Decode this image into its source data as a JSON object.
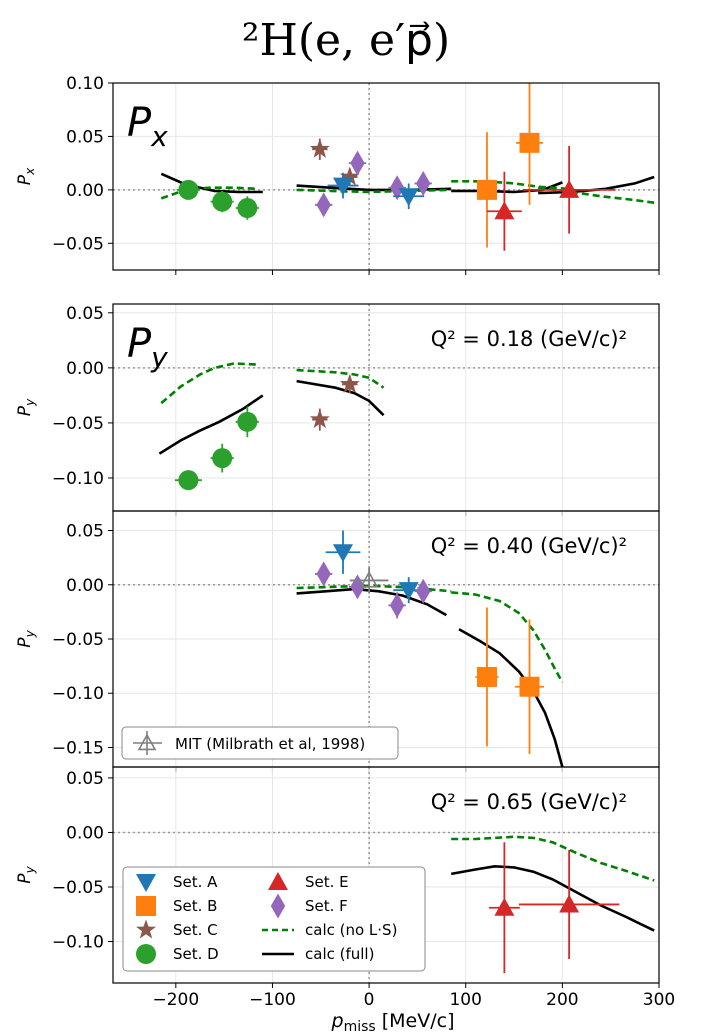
{
  "chart_data": {
    "type": "scatter",
    "title": "²H(e, e′p⃗)",
    "xlabel_main": "p",
    "xlabel_sub": "miss",
    "xlabel_unit": " [MeV/c]",
    "xlim": [
      -265,
      300
    ],
    "xticks": [
      -200,
      -100,
      0,
      100,
      200,
      300
    ],
    "xtick_labels": [
      "−200",
      "−100",
      "0",
      "100",
      "200",
      "300"
    ],
    "colors": {
      "A": "#1f77b4",
      "B": "#ff7f0e",
      "C": "#8c564b",
      "D": "#2ca02c",
      "E": "#d62728",
      "F": "#9467bd",
      "noLS": "#008000",
      "full": "#000000",
      "MIT": "#7f7f7f"
    },
    "panels": [
      {
        "id": "px",
        "ylabel": "P",
        "ylabel_sub": "x",
        "big_label": "P",
        "big_label_sub": "x",
        "annotation": "",
        "ylim": [
          -0.075,
          0.1
        ],
        "yticks": [
          -0.05,
          0.0,
          0.05,
          0.1
        ],
        "ytick_labels": [
          "−0.05",
          "0.00",
          "0.05",
          "0.10"
        ],
        "points": [
          {
            "set": "D",
            "x": -187,
            "y": 0.0,
            "xerr": 12,
            "yerr": 0.009
          },
          {
            "set": "D",
            "x": -152,
            "y": -0.011,
            "xerr": 12,
            "yerr": 0.01
          },
          {
            "set": "D",
            "x": -126,
            "y": -0.017,
            "xerr": 12,
            "yerr": 0.011
          },
          {
            "set": "C",
            "x": -51,
            "y": 0.038,
            "xerr": 8,
            "yerr": 0.01
          },
          {
            "set": "C",
            "x": -20,
            "y": 0.012,
            "xerr": 8,
            "yerr": 0.008
          },
          {
            "set": "F",
            "x": -47,
            "y": -0.014,
            "xerr": 9,
            "yerr": 0.01
          },
          {
            "set": "F",
            "x": -12,
            "y": 0.025,
            "xerr": 9,
            "yerr": 0.01
          },
          {
            "set": "F",
            "x": 29,
            "y": 0.002,
            "xerr": 9,
            "yerr": 0.01
          },
          {
            "set": "F",
            "x": 56,
            "y": 0.006,
            "xerr": 9,
            "yerr": 0.01
          },
          {
            "set": "A",
            "x": -27,
            "y": 0.004,
            "xerr": 16,
            "yerr": 0.012
          },
          {
            "set": "A",
            "x": 41,
            "y": -0.006,
            "xerr": 16,
            "yerr": 0.012
          },
          {
            "set": "B",
            "x": 122,
            "y": 0.0,
            "xerr": 10,
            "yerr": 0.054
          },
          {
            "set": "B",
            "x": 166,
            "y": 0.044,
            "xerr": 14,
            "yerr": 0.058
          },
          {
            "set": "E",
            "x": 140,
            "y": -0.02,
            "xerr": 18,
            "yerr": 0.037
          },
          {
            "set": "E",
            "x": 207,
            "y": 0.0,
            "xerr": 48,
            "yerr": 0.041
          }
        ],
        "curves": [
          {
            "kind": "full",
            "x": [
              -215,
              -190,
              -160,
              -135,
              -110
            ],
            "y": [
              0.015,
              0.005,
              -0.001,
              -0.002,
              -0.002
            ]
          },
          {
            "kind": "full",
            "x": [
              -75,
              -40,
              0,
              40,
              85
            ],
            "y": [
              0.004,
              0.002,
              0.0,
              0.0,
              0.001
            ]
          },
          {
            "kind": "full",
            "x": [
              85,
              120,
              150,
              180,
              200
            ],
            "y": [
              -0.001,
              -0.001,
              -0.002,
              0.0,
              0.007
            ]
          },
          {
            "kind": "full",
            "x": [
              175,
              210,
              245,
              275,
              295
            ],
            "y": [
              -0.003,
              -0.002,
              0.001,
              0.006,
              0.012
            ]
          },
          {
            "kind": "noLS",
            "x": [
              -215,
              -190,
              -165,
              -140,
              -115
            ],
            "y": [
              -0.008,
              0.0,
              0.002,
              0.002,
              0.001
            ]
          },
          {
            "kind": "noLS",
            "x": [
              -75,
              -40,
              0,
              40,
              85
            ],
            "y": [
              0.0,
              -0.001,
              -0.002,
              -0.001,
              0.0
            ]
          },
          {
            "kind": "noLS",
            "x": [
              85,
              120,
              150,
              175,
              205
            ],
            "y": [
              0.008,
              0.008,
              0.006,
              0.003,
              0.001
            ]
          },
          {
            "kind": "noLS",
            "x": [
              175,
              210,
              240,
              270,
              295
            ],
            "y": [
              0.002,
              -0.002,
              -0.006,
              -0.009,
              -0.012
            ]
          }
        ]
      },
      {
        "id": "py018",
        "ylabel": "P",
        "ylabel_sub": "y",
        "big_label": "P",
        "big_label_sub": "y",
        "annotation": "Q² = 0.18 (GeV/c)²",
        "ylim": [
          -0.13,
          0.058
        ],
        "yticks": [
          -0.1,
          -0.05,
          0.0,
          0.05
        ],
        "ytick_labels": [
          "−0.10",
          "−0.05",
          "0.00",
          "0.05"
        ],
        "points": [
          {
            "set": "D",
            "x": -187,
            "y": -0.102,
            "xerr": 14,
            "yerr": 0.009
          },
          {
            "set": "D",
            "x": -152,
            "y": -0.082,
            "xerr": 12,
            "yerr": 0.013
          },
          {
            "set": "D",
            "x": -126,
            "y": -0.049,
            "xerr": 12,
            "yerr": 0.014
          },
          {
            "set": "C",
            "x": -51,
            "y": -0.047,
            "xerr": 8,
            "yerr": 0.01
          },
          {
            "set": "C",
            "x": -20,
            "y": -0.015,
            "xerr": 8,
            "yerr": 0.008
          }
        ],
        "curves": [
          {
            "kind": "full",
            "x": [
              -217,
              -195,
              -175,
              -155,
              -130,
              -110
            ],
            "y": [
              -0.078,
              -0.066,
              -0.057,
              -0.049,
              -0.037,
              -0.025
            ]
          },
          {
            "kind": "full",
            "x": [
              -75,
              -55,
              -35,
              -15,
              0,
              15
            ],
            "y": [
              -0.012,
              -0.015,
              -0.018,
              -0.023,
              -0.03,
              -0.043
            ]
          },
          {
            "kind": "noLS",
            "x": [
              -215,
              -195,
              -175,
              -160,
              -140,
              -115
            ],
            "y": [
              -0.032,
              -0.017,
              -0.006,
              0.0,
              0.004,
              0.003
            ]
          },
          {
            "kind": "noLS",
            "x": [
              -75,
              -55,
              -35,
              -15,
              0,
              15
            ],
            "y": [
              -0.002,
              -0.003,
              -0.004,
              -0.006,
              -0.009,
              -0.018
            ]
          }
        ]
      },
      {
        "id": "py040",
        "ylabel": "P",
        "ylabel_sub": "y",
        "big_label": "",
        "big_label_sub": "",
        "annotation": "Q² = 0.40 (GeV/c)²",
        "ylim": [
          -0.168,
          0.068
        ],
        "yticks": [
          -0.15,
          -0.1,
          -0.05,
          0.0,
          0.05
        ],
        "ytick_labels": [
          "−0.15",
          "−0.10",
          "−0.05",
          "0.00",
          "0.05"
        ],
        "legend_mit": "MIT (Milbrath et al, 1998)",
        "points": [
          {
            "set": "A",
            "x": -27,
            "y": 0.03,
            "xerr": 18,
            "yerr": 0.02
          },
          {
            "set": "A",
            "x": 41,
            "y": -0.005,
            "xerr": 16,
            "yerr": 0.012
          },
          {
            "set": "F",
            "x": -47,
            "y": 0.01,
            "xerr": 9,
            "yerr": 0.009
          },
          {
            "set": "F",
            "x": -12,
            "y": -0.002,
            "xerr": 9,
            "yerr": 0.009
          },
          {
            "set": "F",
            "x": 29,
            "y": -0.019,
            "xerr": 9,
            "yerr": 0.012
          },
          {
            "set": "F",
            "x": 56,
            "y": -0.006,
            "xerr": 9,
            "yerr": 0.01
          },
          {
            "set": "MIT",
            "x": 0,
            "y": 0.004,
            "xerr": 20,
            "yerr": 0.012
          },
          {
            "set": "B",
            "x": 122,
            "y": -0.085,
            "xerr": 12,
            "yerr": 0.064
          },
          {
            "set": "B",
            "x": 166,
            "y": -0.094,
            "xerr": 15,
            "yerr": 0.062
          }
        ],
        "curves": [
          {
            "kind": "full",
            "x": [
              -75,
              -45,
              -15,
              10,
              35,
              60,
              80
            ],
            "y": [
              -0.008,
              -0.006,
              -0.004,
              -0.006,
              -0.01,
              -0.018,
              -0.028
            ]
          },
          {
            "kind": "full",
            "x": [
              93,
              115,
              135,
              155,
              170,
              182,
              192,
              200
            ],
            "y": [
              -0.041,
              -0.052,
              -0.063,
              -0.08,
              -0.098,
              -0.118,
              -0.142,
              -0.168
            ]
          },
          {
            "kind": "noLS",
            "x": [
              -75,
              -40,
              0,
              30,
              60,
              85
            ],
            "y": [
              -0.003,
              -0.002,
              -0.001,
              -0.002,
              -0.004,
              -0.006
            ]
          },
          {
            "kind": "noLS",
            "x": [
              85,
              110,
              135,
              155,
              170,
              182,
              192,
              200
            ],
            "y": [
              -0.007,
              -0.009,
              -0.015,
              -0.026,
              -0.042,
              -0.06,
              -0.077,
              -0.09
            ]
          }
        ]
      },
      {
        "id": "py065",
        "ylabel": "P",
        "ylabel_sub": "y",
        "big_label": "",
        "big_label_sub": "",
        "annotation": "Q² = 0.65 (GeV/c)²",
        "ylim": [
          -0.138,
          0.06
        ],
        "yticks": [
          -0.1,
          -0.05,
          0.0,
          0.05
        ],
        "ytick_labels": [
          "−0.10",
          "−0.05",
          "0.00",
          "0.05"
        ],
        "points": [
          {
            "set": "E",
            "x": 140,
            "y": -0.069,
            "xerr": 16,
            "yerr": 0.06
          },
          {
            "set": "E",
            "x": 207,
            "y": -0.066,
            "xerr": 52,
            "yerr": 0.05
          }
        ],
        "curves": [
          {
            "kind": "full",
            "x": [
              85,
              110,
              130,
              150,
              170,
              190,
              215,
              240,
              265,
              295
            ],
            "y": [
              -0.038,
              -0.034,
              -0.031,
              -0.032,
              -0.036,
              -0.043,
              -0.055,
              -0.067,
              -0.077,
              -0.09
            ]
          },
          {
            "kind": "noLS",
            "x": [
              85,
              110,
              130,
              150,
              170,
              190,
              215,
              240,
              265,
              295
            ],
            "y": [
              -0.006,
              -0.006,
              -0.005,
              -0.004,
              -0.005,
              -0.009,
              -0.019,
              -0.028,
              -0.035,
              -0.044
            ]
          }
        ]
      }
    ],
    "legend": {
      "items": [
        {
          "key": "A",
          "label": "Set. A",
          "marker": "triangle-down"
        },
        {
          "key": "B",
          "label": "Set. B",
          "marker": "square"
        },
        {
          "key": "C",
          "label": "Set. C",
          "marker": "star"
        },
        {
          "key": "D",
          "label": "Set. D",
          "marker": "circle"
        },
        {
          "key": "E",
          "label": "Set. E",
          "marker": "triangle-up"
        },
        {
          "key": "F",
          "label": "Set. F",
          "marker": "diamond"
        },
        {
          "key": "noLS",
          "label": "calc (no L·S)",
          "marker": "dashed-line"
        },
        {
          "key": "full",
          "label": "calc (full)",
          "marker": "solid-line"
        }
      ]
    }
  }
}
